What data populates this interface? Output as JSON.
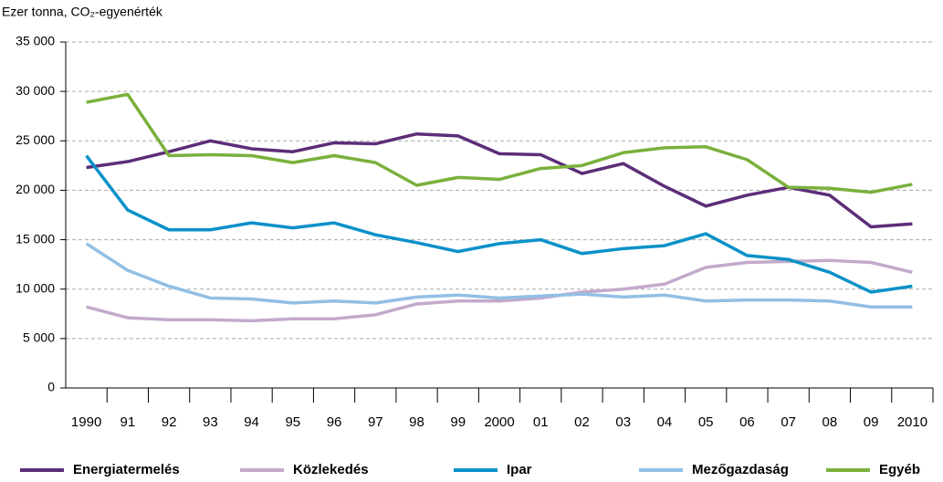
{
  "chart_data": {
    "type": "line",
    "y_label": "Ezer tonna, CO₂-egyenérték",
    "categories": [
      "1990",
      "91",
      "92",
      "93",
      "94",
      "95",
      "96",
      "97",
      "98",
      "99",
      "2000",
      "01",
      "02",
      "03",
      "04",
      "05",
      "06",
      "07",
      "08",
      "09",
      "2010"
    ],
    "series": [
      {
        "name": "Energiatermelés",
        "color": "#5c2d78",
        "values": [
          22300,
          22900,
          23900,
          25000,
          24200,
          23900,
          24800,
          24700,
          25700,
          25500,
          23700,
          23600,
          21700,
          22700,
          20400,
          18400,
          19500,
          20300,
          19500,
          16300,
          16600
        ]
      },
      {
        "name": "Közlekedés",
        "color": "#c3aacb",
        "values": [
          8200,
          7100,
          6900,
          6900,
          6800,
          7000,
          7000,
          7400,
          8500,
          8800,
          8800,
          9100,
          9700,
          10000,
          10500,
          12200,
          12700,
          12800,
          12900,
          12700,
          11700
        ]
      },
      {
        "name": "Ipar",
        "color": "#0a91c8",
        "values": [
          23500,
          18000,
          16000,
          16000,
          16700,
          16200,
          16700,
          15500,
          14700,
          13800,
          14600,
          15000,
          13600,
          14100,
          14400,
          15600,
          13400,
          13000,
          11700,
          9700,
          10300
        ]
      },
      {
        "name": "Mezőgazdaság",
        "color": "#92bfe4",
        "values": [
          14600,
          11900,
          10300,
          9100,
          9000,
          8600,
          8800,
          8600,
          9200,
          9400,
          9100,
          9300,
          9500,
          9200,
          9400,
          8800,
          8900,
          8900,
          8800,
          8200,
          8200
        ]
      },
      {
        "name": "Egyéb",
        "color": "#7ab03c",
        "values": [
          28900,
          29700,
          23500,
          23600,
          23500,
          22800,
          23500,
          22800,
          20500,
          21300,
          21100,
          22200,
          22500,
          23800,
          24300,
          24400,
          23100,
          20300,
          20200,
          19800,
          20600
        ]
      }
    ],
    "ylim": [
      0,
      35000
    ],
    "yticks": [
      0,
      {
        "value": 5000,
        "label": "5 000"
      },
      {
        "value": 10000,
        "label": "10 000"
      },
      {
        "value": 15000,
        "label": "15 000"
      },
      {
        "value": 20000,
        "label": "20 000"
      },
      {
        "value": 25000,
        "label": "25 000"
      },
      {
        "value": 30000,
        "label": "30 000"
      },
      {
        "value": 35000,
        "label": "35 000"
      }
    ],
    "grid": true,
    "legend": "bottom"
  }
}
